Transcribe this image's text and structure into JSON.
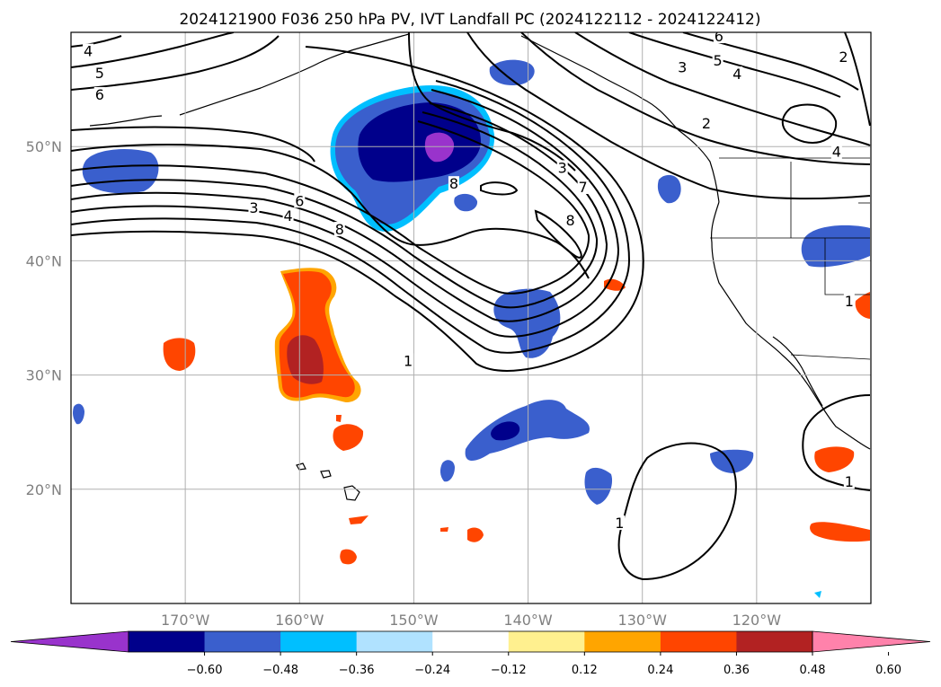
{
  "map": {
    "title": "2024121900 F036 250 hPa PV, IVT Landfall PC (2024122112 - 2024122412)",
    "extent": {
      "lon": [
        -180,
        -110
      ],
      "lat": [
        10,
        60
      ]
    },
    "grid": true,
    "lon_ticks": [
      {
        "lon": -170,
        "label": "170°W"
      },
      {
        "lon": -160,
        "label": "160°W"
      },
      {
        "lon": -150,
        "label": "150°W"
      },
      {
        "lon": -140,
        "label": "140°W"
      },
      {
        "lon": -130,
        "label": "130°W"
      },
      {
        "lon": -120,
        "label": "120°W"
      }
    ],
    "lat_ticks": [
      {
        "lat": 20,
        "label": "20°N"
      },
      {
        "lat": 30,
        "label": "30°N"
      },
      {
        "lat": 40,
        "label": "40°N"
      },
      {
        "lat": 50,
        "label": "50°N"
      }
    ],
    "contour_labels": [
      {
        "text": "4",
        "lon": -178.5,
        "lat": 58.3
      },
      {
        "text": "5",
        "lon": -177.5,
        "lat": 56.4
      },
      {
        "text": "6",
        "lon": -177.5,
        "lat": 54.5
      },
      {
        "text": "3",
        "lon": -164.0,
        "lat": 44.6
      },
      {
        "text": "4",
        "lon": -161.0,
        "lat": 43.9
      },
      {
        "text": "6",
        "lon": -160.0,
        "lat": 45.2
      },
      {
        "text": "8",
        "lon": -156.5,
        "lat": 42.7
      },
      {
        "text": "1",
        "lon": -150.5,
        "lat": 31.2
      },
      {
        "text": "8",
        "lon": -146.5,
        "lat": 46.7
      },
      {
        "text": "3",
        "lon": -137.0,
        "lat": 48.1
      },
      {
        "text": "7",
        "lon": -135.2,
        "lat": 46.4
      },
      {
        "text": "8",
        "lon": -136.3,
        "lat": 43.5
      },
      {
        "text": "6",
        "lon": -123.3,
        "lat": 59.6
      },
      {
        "text": "5",
        "lon": -123.4,
        "lat": 57.5
      },
      {
        "text": "4",
        "lon": -121.7,
        "lat": 56.3
      },
      {
        "text": "3",
        "lon": -126.5,
        "lat": 56.9
      },
      {
        "text": "2",
        "lon": -124.4,
        "lat": 52.0
      },
      {
        "text": "2",
        "lon": -112.4,
        "lat": 57.8
      },
      {
        "text": "4",
        "lon": -113.0,
        "lat": 49.5
      },
      {
        "text": "1",
        "lon": -111.9,
        "lat": 36.4
      },
      {
        "text": "1",
        "lon": -132.0,
        "lat": 17.0
      },
      {
        "text": "1",
        "lon": -111.9,
        "lat": 20.6
      }
    ]
  },
  "colorbar": {
    "ticks": [
      "−0.60",
      "−0.48",
      "−0.36",
      "−0.24",
      "−0.12",
      "0.12",
      "0.24",
      "0.36",
      "0.48",
      "0.60"
    ],
    "colors": [
      "#9933cc",
      "#00008b",
      "#3a5fcd",
      "#00bfff",
      "#b0e2ff",
      "#ffffff",
      "#fff08f",
      "#ffa500",
      "#ff4500",
      "#b22222",
      "#ff82ab"
    ]
  },
  "palette": {
    "purple": "#9933cc",
    "navy": "#00008b",
    "royal": "#3a5fcd",
    "sky": "#00bfff",
    "light_blue": "#b0e2ff",
    "yellow": "#fff08f",
    "orange": "#ffa500",
    "red_orange": "#ff4500",
    "firebrick": "#b22222",
    "pink": "#ff82ab"
  }
}
